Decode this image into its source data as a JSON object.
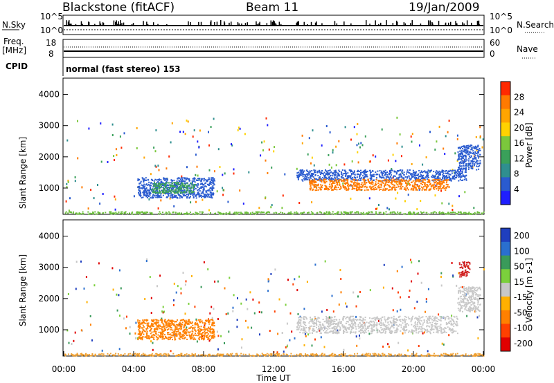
{
  "header": {
    "station": "Blackstone (fitACF)",
    "beam": "Beam 11",
    "date": "19/Jan/2009"
  },
  "status_panels": {
    "nsky_label": "N.Sky",
    "nsky_ticks": [
      "10^5",
      "10^0"
    ],
    "nsearch_label": "N.Search",
    "nsearch_ticks": [
      "10^5",
      "10^0"
    ],
    "freq_label_1": "Freq.",
    "freq_label_2": "[MHz]",
    "freq_ticks": [
      "18",
      "8"
    ],
    "nave_label": "Nave",
    "nave_ticks": [
      "60",
      "0"
    ],
    "cpid_label": "CPID",
    "cpid_text": "normal (fast stereo) 153"
  },
  "chart_data": [
    {
      "type": "heatmap",
      "panel": "power",
      "ylabel": "Slant Range [km]",
      "ylim": [
        180,
        4500
      ],
      "y_ticks": [
        1000,
        2000,
        3000,
        4000
      ],
      "xlim": [
        0,
        24
      ],
      "colorbar": {
        "label": "Power [dB]",
        "ticks": [
          "4",
          "8",
          "12",
          "16",
          "20",
          "24",
          "28"
        ],
        "colors": [
          "#1f1fff",
          "#2a5bcf",
          "#2f8f8f",
          "#3aa05a",
          "#7bc83c",
          "#ffd200",
          "#ffa500",
          "#ff7a00",
          "#ff2a00"
        ]
      },
      "regions": [
        {
          "t": [
            0.0,
            24.0
          ],
          "r": [
            180,
            260
          ],
          "color": "#6cbf3c"
        },
        {
          "t": [
            4.2,
            8.6
          ],
          "r": [
            700,
            1350
          ],
          "color": "#2a5bcf"
        },
        {
          "t": [
            5.0,
            7.5
          ],
          "r": [
            850,
            1200
          ],
          "color": "#3aa05a"
        },
        {
          "t": [
            13.3,
            23.0
          ],
          "r": [
            1250,
            1600
          ],
          "color": "#2a5bcf"
        },
        {
          "t": [
            14.0,
            22.0
          ],
          "r": [
            950,
            1300
          ],
          "color": "#ff7a00"
        },
        {
          "t": [
            22.5,
            23.8
          ],
          "r": [
            1600,
            2400
          ],
          "color": "#2a5bcf"
        }
      ]
    },
    {
      "type": "heatmap",
      "panel": "velocity",
      "ylabel": "Slant Range [km]",
      "ylim": [
        180,
        4500
      ],
      "y_ticks": [
        1000,
        2000,
        3000,
        4000
      ],
      "xlim": [
        0,
        24
      ],
      "x_ticks": [
        "00:00",
        "04:00",
        "08:00",
        "12:00",
        "16:00",
        "20:00",
        "00:00"
      ],
      "xlabel": "Time UT",
      "colorbar": {
        "label": "Velocity [m s-1]",
        "ticks": [
          "200",
          "100",
          "50",
          "15",
          "-15",
          "-50",
          "-100",
          "-200"
        ],
        "colors": [
          "#1f3fbf",
          "#2a6fcf",
          "#3a9a5a",
          "#7bd03c",
          "#c8c8c8",
          "#ffb000",
          "#ff8000",
          "#ff4000",
          "#e00000"
        ]
      },
      "regions": [
        {
          "t": [
            0.0,
            24.0
          ],
          "r": [
            180,
            260
          ],
          "color": "#f0a030"
        },
        {
          "t": [
            4.2,
            8.6
          ],
          "r": [
            700,
            1350
          ],
          "color": "#ff8000"
        },
        {
          "t": [
            13.3,
            22.5
          ],
          "r": [
            900,
            1450
          ],
          "color": "#c8c8c8"
        },
        {
          "t": [
            22.6,
            23.2
          ],
          "r": [
            2700,
            3200
          ],
          "color": "#d02020"
        },
        {
          "t": [
            22.5,
            23.8
          ],
          "r": [
            1600,
            2400
          ],
          "color": "#c8c8c8"
        }
      ]
    }
  ]
}
